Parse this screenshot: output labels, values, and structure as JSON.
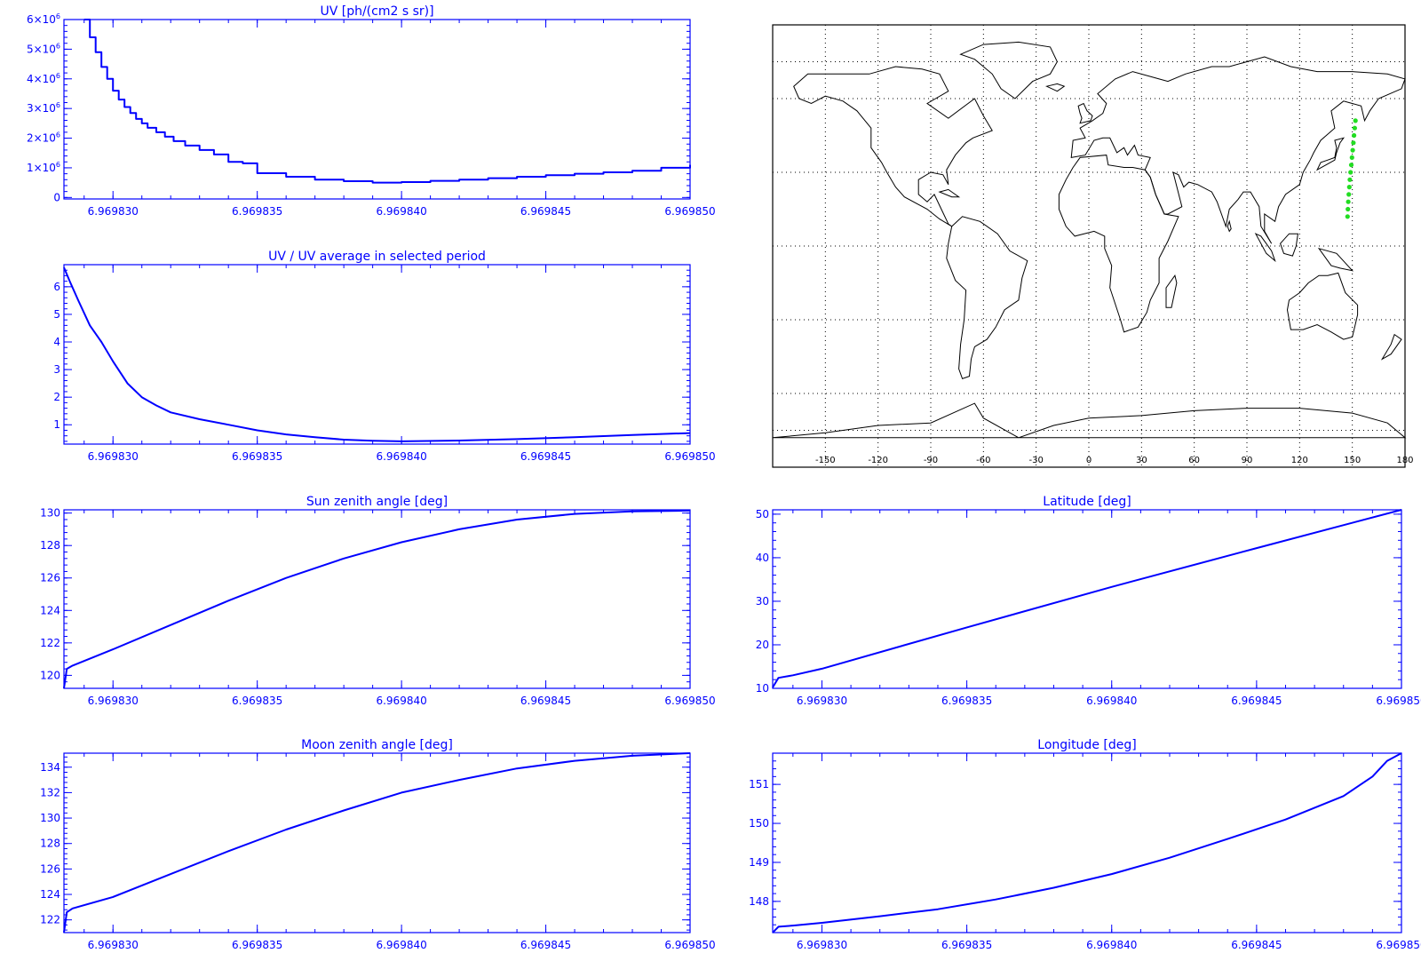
{
  "colors": {
    "plot": "#0000ff",
    "background": "#ffffff",
    "map_outline": "#000000",
    "map_grid": "#000000",
    "track": "#22dd22"
  },
  "chart_data": [
    {
      "id": "uv",
      "type": "line",
      "step": true,
      "title": "UV [ph/(cm2 s sr)]",
      "xlabel": "",
      "ylabel": "",
      "xlim": [
        6.9698283,
        6.96985
      ],
      "ylim": [
        -50000,
        6000000
      ],
      "x_ticks": [
        6.96983,
        6.969835,
        6.96984,
        6.969845,
        6.96985
      ],
      "x_tick_labels": [
        "6.969830",
        "6.969835",
        "6.969840",
        "6.969845",
        "6.969850"
      ],
      "y_ticks": [
        0,
        1000000,
        2000000,
        3000000,
        4000000,
        5000000,
        6000000
      ],
      "y_tick_labels": [
        {
          "mant": "0",
          "exp": ""
        },
        {
          "mant": "1×10",
          "exp": "6"
        },
        {
          "mant": "2×10",
          "exp": "6"
        },
        {
          "mant": "3×10",
          "exp": "6"
        },
        {
          "mant": "4×10",
          "exp": "6"
        },
        {
          "mant": "5×10",
          "exp": "6"
        },
        {
          "mant": "6×10",
          "exp": "6"
        }
      ],
      "x": [
        6.969829,
        6.9698292,
        6.9698294,
        6.9698296,
        6.9698298,
        6.96983,
        6.9698302,
        6.9698304,
        6.9698306,
        6.9698308,
        6.969831,
        6.9698312,
        6.9698315,
        6.9698318,
        6.9698321,
        6.9698325,
        6.969833,
        6.9698335,
        6.969834,
        6.9698345,
        6.969835,
        6.969836,
        6.969837,
        6.969838,
        6.969839,
        6.96984,
        6.969841,
        6.969842,
        6.969843,
        6.969844,
        6.969845,
        6.969846,
        6.969847,
        6.969848,
        6.969849,
        6.96985
      ],
      "values": [
        6000000,
        5400000,
        4900000,
        4400000,
        4000000,
        3600000,
        3300000,
        3050000,
        2850000,
        2650000,
        2500000,
        2350000,
        2200000,
        2050000,
        1900000,
        1750000,
        1600000,
        1450000,
        1200000,
        1150000,
        820000,
        700000,
        600000,
        550000,
        500000,
        520000,
        560000,
        600000,
        650000,
        700000,
        750000,
        800000,
        850000,
        900000,
        1000000,
        1100000
      ]
    },
    {
      "id": "uv-ratio",
      "type": "line",
      "title": "UV / UV average in selected period",
      "xlabel": "",
      "ylabel": "",
      "xlim": [
        6.9698283,
        6.96985
      ],
      "ylim": [
        0.3,
        6.8
      ],
      "x_ticks": [
        6.96983,
        6.969835,
        6.96984,
        6.969845,
        6.96985
      ],
      "x_tick_labels": [
        "6.969830",
        "6.969835",
        "6.969840",
        "6.969845",
        "6.969850"
      ],
      "y_ticks": [
        1,
        2,
        3,
        4,
        5,
        6
      ],
      "y_tick_labels": [
        "1",
        "2",
        "3",
        "4",
        "5",
        "6"
      ],
      "x": [
        6.9698283,
        6.9698285,
        6.9698288,
        6.9698292,
        6.9698296,
        6.96983,
        6.9698305,
        6.969831,
        6.9698315,
        6.969832,
        6.969833,
        6.969834,
        6.969835,
        6.969836,
        6.969837,
        6.969838,
        6.969839,
        6.96984,
        6.969842,
        6.969844,
        6.969846,
        6.969848,
        6.96985
      ],
      "values": [
        6.7,
        6.2,
        5.5,
        4.6,
        4.0,
        3.3,
        2.5,
        2.0,
        1.7,
        1.45,
        1.2,
        1.0,
        0.8,
        0.65,
        0.55,
        0.46,
        0.42,
        0.4,
        0.43,
        0.48,
        0.55,
        0.63,
        0.7
      ]
    },
    {
      "id": "sun-zenith",
      "type": "line",
      "title": "Sun zenith angle [deg]",
      "xlabel": "",
      "ylabel": "",
      "xlim": [
        6.9698283,
        6.96985
      ],
      "ylim": [
        119.2,
        130.2
      ],
      "x_ticks": [
        6.96983,
        6.969835,
        6.96984,
        6.969845,
        6.96985
      ],
      "x_tick_labels": [
        "6.969830",
        "6.969835",
        "6.969840",
        "6.969845",
        "6.969850"
      ],
      "y_ticks": [
        120,
        122,
        124,
        126,
        128,
        130
      ],
      "y_tick_labels": [
        "120",
        "122",
        "124",
        "126",
        "128",
        "130"
      ],
      "x": [
        6.9698283,
        6.9698284,
        6.9698286,
        6.96983,
        6.969832,
        6.969834,
        6.969836,
        6.969838,
        6.96984,
        6.969842,
        6.969844,
        6.969846,
        6.969848,
        6.96985
      ],
      "values": [
        119.2,
        120.4,
        120.6,
        121.6,
        123.1,
        124.6,
        126.0,
        127.2,
        128.2,
        129.0,
        129.6,
        129.95,
        130.1,
        130.15
      ]
    },
    {
      "id": "moon-zenith",
      "type": "line",
      "title": "Moon zenith angle [deg]",
      "xlabel": "",
      "ylabel": "",
      "xlim": [
        6.9698283,
        6.96985
      ],
      "ylim": [
        121,
        135.1
      ],
      "x_ticks": [
        6.96983,
        6.969835,
        6.96984,
        6.969845,
        6.96985
      ],
      "x_tick_labels": [
        "6.969830",
        "6.969835",
        "6.969840",
        "6.969845",
        "6.969850"
      ],
      "y_ticks": [
        122,
        124,
        126,
        128,
        130,
        132,
        134
      ],
      "y_tick_labels": [
        "122",
        "124",
        "126",
        "128",
        "130",
        "132",
        "134"
      ],
      "x": [
        6.9698283,
        6.9698284,
        6.9698286,
        6.96983,
        6.969832,
        6.969834,
        6.969836,
        6.969838,
        6.96984,
        6.969842,
        6.969844,
        6.969846,
        6.969848,
        6.96985
      ],
      "values": [
        121.0,
        122.6,
        122.9,
        123.8,
        125.6,
        127.4,
        129.1,
        130.6,
        132.0,
        133.0,
        133.9,
        134.5,
        134.9,
        135.1
      ]
    },
    {
      "id": "latitude",
      "type": "line",
      "title": "Latitude [deg]",
      "xlabel": "",
      "ylabel": "",
      "xlim": [
        6.9698283,
        6.96985
      ],
      "ylim": [
        10,
        51
      ],
      "x_ticks": [
        6.96983,
        6.969835,
        6.96984,
        6.969845,
        6.96985
      ],
      "x_tick_labels": [
        "6.969830",
        "6.969835",
        "6.969840",
        "6.969845",
        "6.969850"
      ],
      "y_ticks": [
        10,
        20,
        30,
        40,
        50
      ],
      "y_tick_labels": [
        "10",
        "20",
        "30",
        "40",
        "50"
      ],
      "x": [
        6.9698283,
        6.9698285,
        6.969829,
        6.96983,
        6.969835,
        6.96984,
        6.969845,
        6.96985
      ],
      "values": [
        10.2,
        12.4,
        13.0,
        14.5,
        24.0,
        33.3,
        42.2,
        51.0
      ]
    },
    {
      "id": "longitude",
      "type": "line",
      "title": "Longitude [deg]",
      "xlabel": "",
      "ylabel": "",
      "xlim": [
        6.9698283,
        6.96985
      ],
      "ylim": [
        147.2,
        151.8
      ],
      "x_ticks": [
        6.96983,
        6.969835,
        6.96984,
        6.969845,
        6.96985
      ],
      "x_tick_labels": [
        "6.969830",
        "6.969835",
        "6.969840",
        "6.969845",
        "6.969850"
      ],
      "y_ticks": [
        148,
        149,
        150,
        151
      ],
      "y_tick_labels": [
        "148",
        "149",
        "150",
        "151"
      ],
      "x": [
        6.9698283,
        6.9698285,
        6.969829,
        6.96983,
        6.969832,
        6.969834,
        6.969836,
        6.969838,
        6.96984,
        6.969842,
        6.969844,
        6.969846,
        6.969848,
        6.969849,
        6.9698495,
        6.96985
      ],
      "values": [
        147.2,
        147.35,
        147.38,
        147.45,
        147.62,
        147.8,
        148.05,
        148.35,
        148.7,
        149.12,
        149.6,
        150.1,
        150.7,
        151.2,
        151.6,
        151.8
      ]
    },
    {
      "id": "map",
      "type": "scatter",
      "title": "",
      "xlim": [
        -180,
        180
      ],
      "ylim": [
        -90,
        90
      ],
      "x_ticks": [
        -150,
        -120,
        -90,
        -60,
        -30,
        0,
        30,
        60,
        90,
        120,
        150,
        180
      ],
      "x_tick_labels": [
        "-150",
        "-120",
        "-90",
        "-60",
        "-30",
        "0",
        "30",
        "60",
        "90",
        "120",
        "150",
        "180"
      ],
      "grid": true,
      "track": {
        "lon": [
          147.3,
          147.5,
          147.7,
          148.0,
          148.3,
          148.6,
          149.0,
          149.4,
          149.8,
          150.2,
          150.6,
          151.0,
          151.4,
          151.8
        ],
        "lat": [
          12,
          15,
          18,
          21,
          24,
          27,
          30,
          33,
          36,
          39,
          42,
          45,
          48,
          51
        ]
      }
    }
  ]
}
